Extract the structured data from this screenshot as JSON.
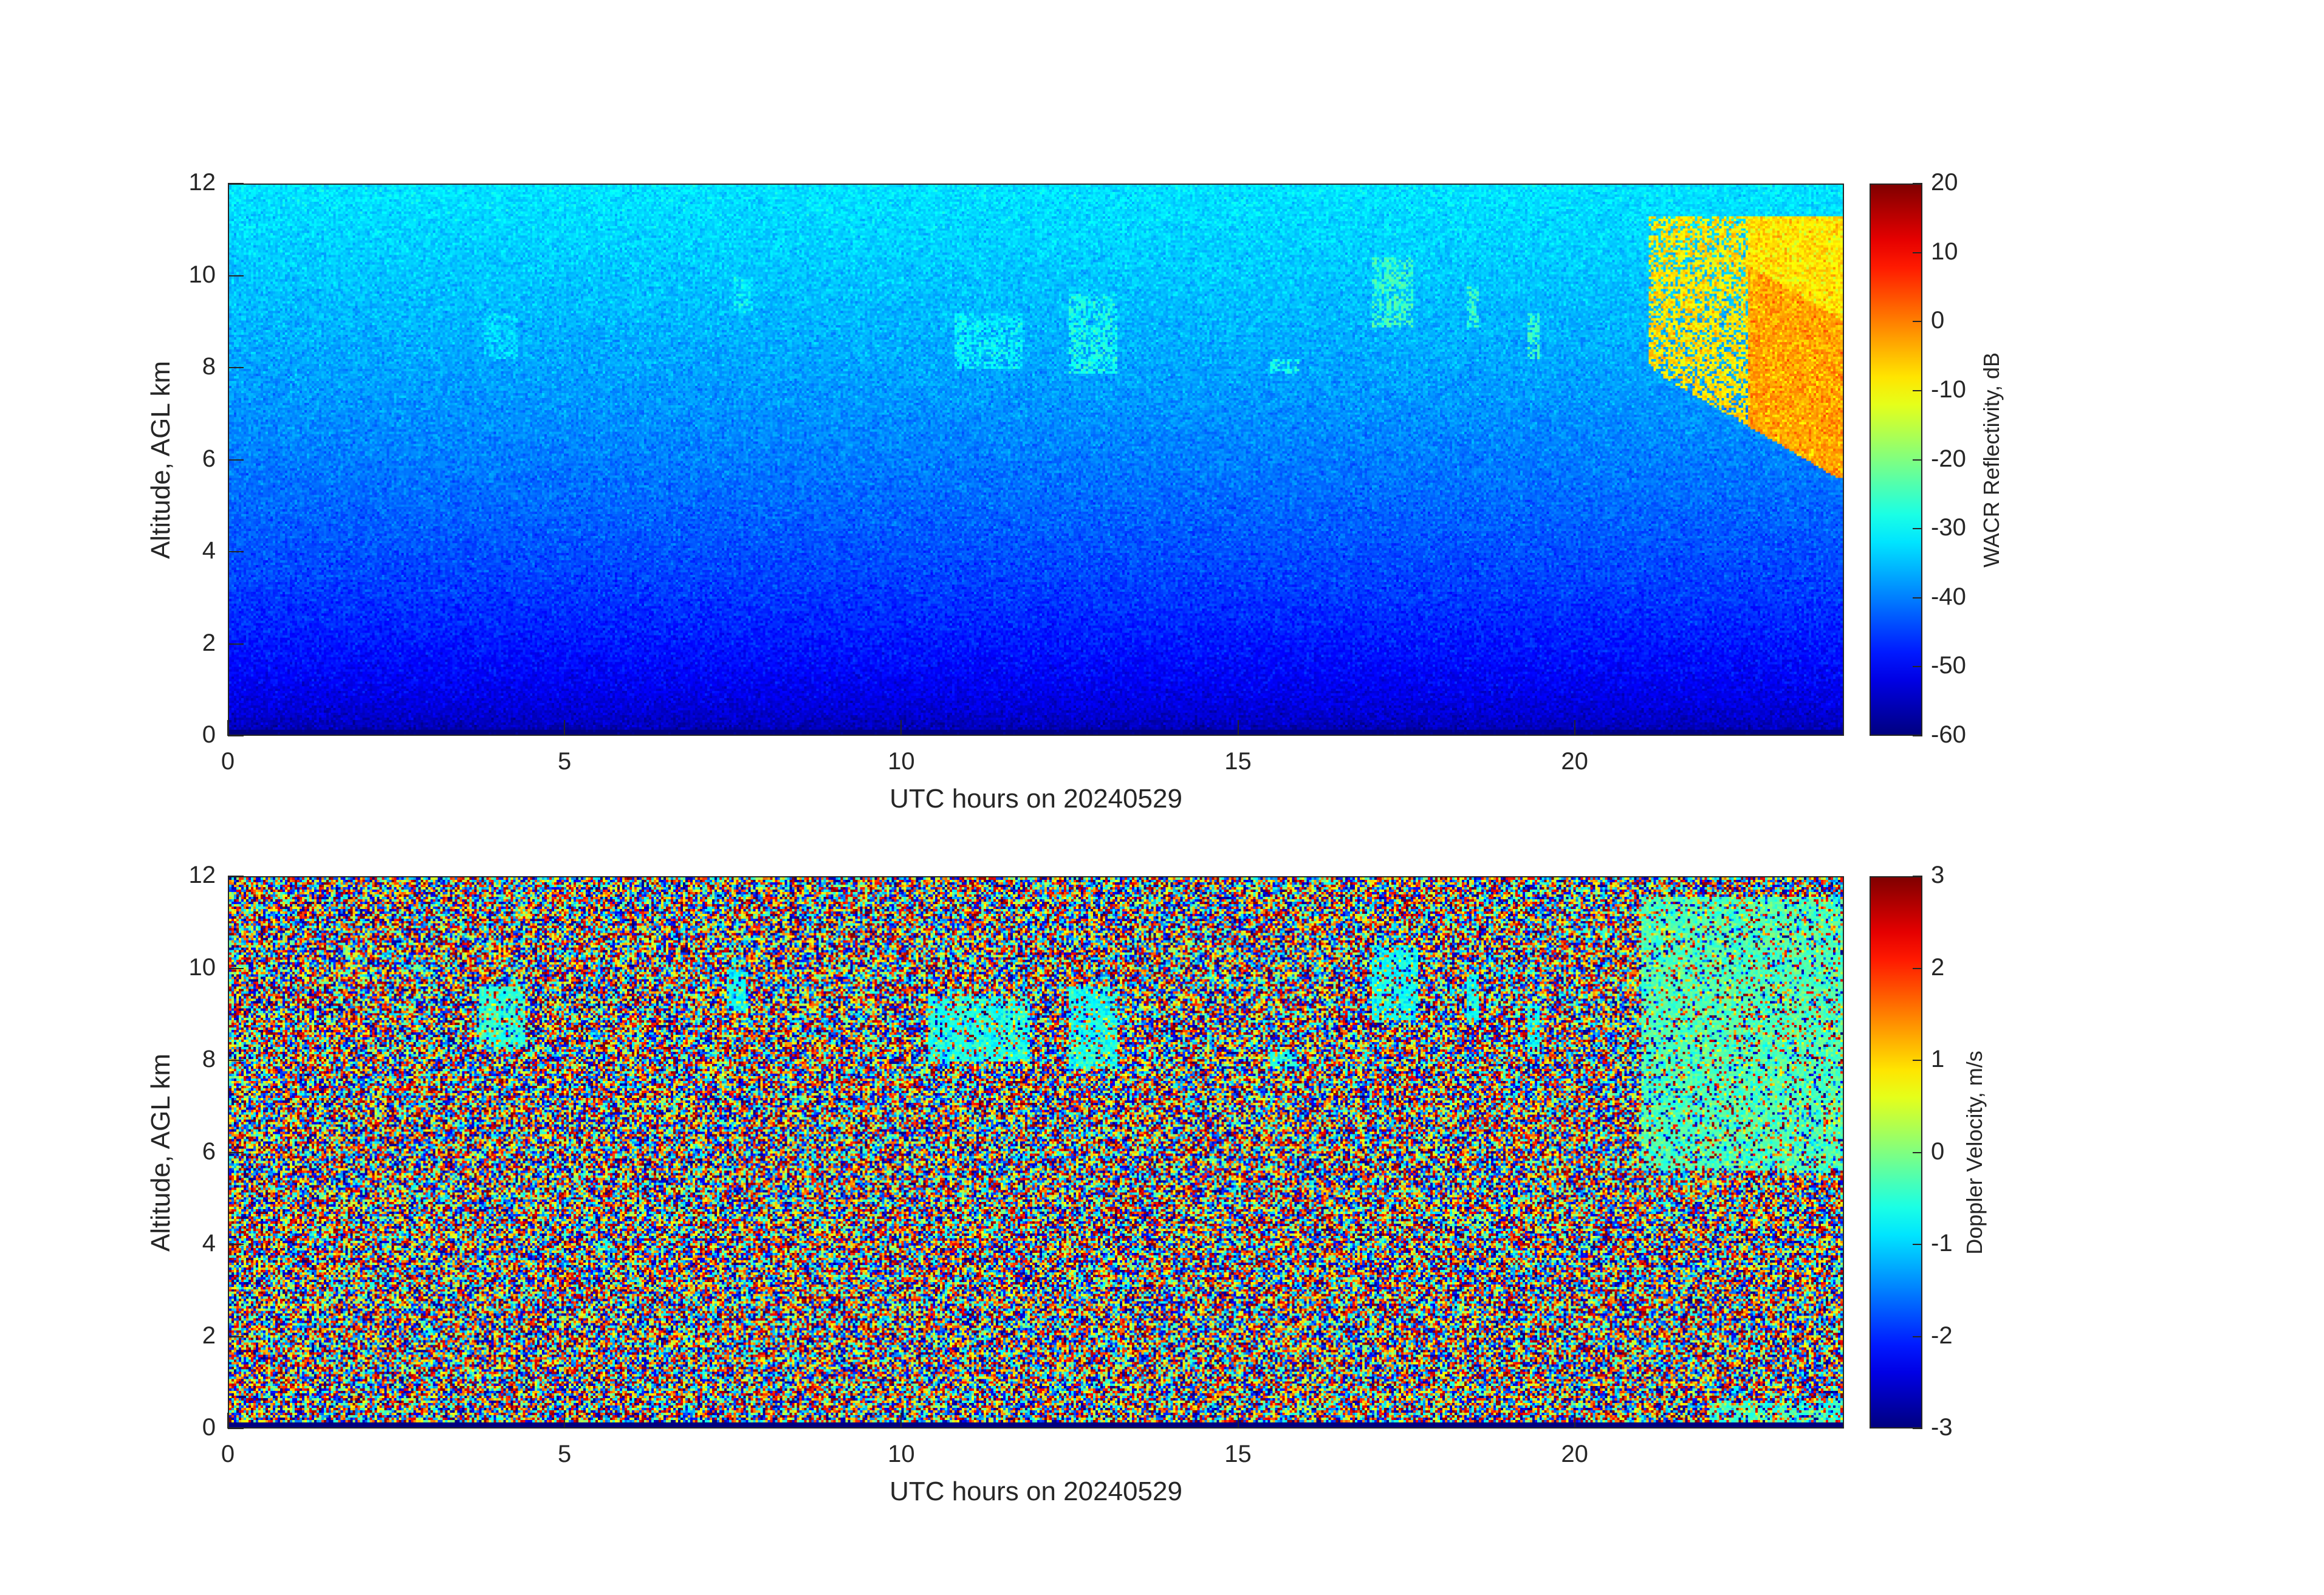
{
  "chart_data": [
    {
      "type": "heatmap",
      "title": "",
      "xlabel": "UTC hours on 20240529",
      "ylabel": "Altitude, AGL km",
      "xlim": [
        0,
        24
      ],
      "ylim": [
        0,
        12
      ],
      "xticks": [
        0,
        5,
        10,
        15,
        20
      ],
      "yticks": [
        0,
        2,
        4,
        6,
        8,
        10,
        12
      ],
      "colorbar": {
        "label": "WACR Reflectivity, dB",
        "range": [
          -60,
          20
        ],
        "ticks": [
          20,
          10,
          0,
          -10,
          -20,
          -30,
          -40,
          -50,
          -60
        ],
        "colormap": "jet"
      },
      "features": [
        {
          "x": [
            3.8,
            4.3
          ],
          "y": [
            8.2,
            9.2
          ],
          "value_db": -32
        },
        {
          "x": [
            7.5,
            7.8
          ],
          "y": [
            9.2,
            10.0
          ],
          "value_db": -30
        },
        {
          "x": [
            10.8,
            11.8
          ],
          "y": [
            8.0,
            9.2
          ],
          "value_db": -30
        },
        {
          "x": [
            12.5,
            13.2
          ],
          "y": [
            7.9,
            9.6
          ],
          "value_db": -28
        },
        {
          "x": [
            15.5,
            15.9
          ],
          "y": [
            7.9,
            8.2
          ],
          "value_db": -28
        },
        {
          "x": [
            17.0,
            17.6
          ],
          "y": [
            8.9,
            10.4
          ],
          "value_db": -25
        },
        {
          "x": [
            18.4,
            18.6
          ],
          "y": [
            8.9,
            9.8
          ],
          "value_db": -25
        },
        {
          "x": [
            19.3,
            19.5
          ],
          "y": [
            8.2,
            9.2
          ],
          "value_db": -25
        },
        {
          "x": [
            21.1,
            24.0
          ],
          "y": [
            5.6,
            11.3
          ],
          "value_db": -8
        }
      ]
    },
    {
      "type": "heatmap",
      "title": "",
      "xlabel": "UTC hours on 20240529",
      "ylabel": "Altitude, AGL km",
      "xlim": [
        0,
        24
      ],
      "ylim": [
        0,
        12
      ],
      "xticks": [
        0,
        5,
        10,
        15,
        20
      ],
      "yticks": [
        0,
        2,
        4,
        6,
        8,
        10,
        12
      ],
      "colorbar": {
        "label": "Doppler Velocity, m/s",
        "range": [
          -3,
          3
        ],
        "ticks": [
          3,
          2,
          1,
          0,
          -1,
          -2,
          -3
        ],
        "colormap": "jet"
      },
      "features": [
        {
          "x": [
            3.7,
            4.4
          ],
          "y": [
            8.3,
            9.6
          ],
          "value_ms": -0.5
        },
        {
          "x": [
            7.4,
            7.7
          ],
          "y": [
            9.1,
            10.0
          ],
          "value_ms": -0.7
        },
        {
          "x": [
            10.4,
            11.9
          ],
          "y": [
            8.0,
            9.4
          ],
          "value_ms": -0.6
        },
        {
          "x": [
            12.5,
            13.2
          ],
          "y": [
            7.8,
            9.6
          ],
          "value_ms": -0.6
        },
        {
          "x": [
            15.5,
            15.9
          ],
          "y": [
            7.9,
            8.2
          ],
          "value_ms": -0.6
        },
        {
          "x": [
            17.0,
            17.7
          ],
          "y": [
            8.9,
            10.5
          ],
          "value_ms": -0.7
        },
        {
          "x": [
            18.4,
            18.6
          ],
          "y": [
            8.9,
            9.9
          ],
          "value_ms": -0.7
        },
        {
          "x": [
            19.3,
            19.5
          ],
          "y": [
            8.2,
            9.2
          ],
          "value_ms": -0.7
        },
        {
          "x": [
            21.0,
            24.0
          ],
          "y": [
            5.6,
            11.6
          ],
          "value_ms": -0.3
        }
      ]
    }
  ]
}
